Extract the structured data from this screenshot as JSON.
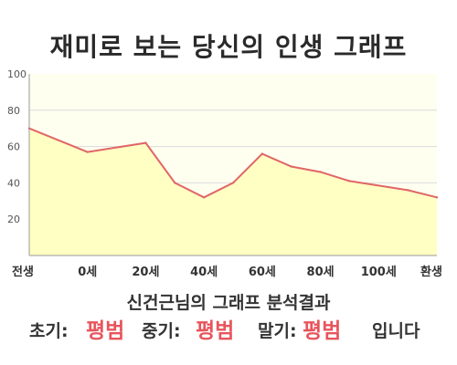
{
  "title": "재미로 보는 당신의 인생 그래프",
  "result": {
    "heading": "신건근님의 그래프 분석결과",
    "early_label": "초기:",
    "early_value": "평범",
    "middle_label": "중기:",
    "middle_value": "평범",
    "late_label": "말기:",
    "late_value": "평범",
    "suffix": "입니다"
  },
  "colors": {
    "line": "#e06666",
    "fill": "#ffffc4",
    "plot_background": "#fffff0",
    "grid": "#dcdcdc",
    "accent_text": "#e8555c"
  },
  "chart_data": {
    "type": "area",
    "title": "재미로 보는 당신의 인생 그래프",
    "xlabel": "",
    "ylabel": "",
    "ylim": [
      0,
      100
    ],
    "yticks": [
      20,
      40,
      60,
      80,
      100
    ],
    "xticks": [
      "전생",
      "0세",
      "20세",
      "40세",
      "60세",
      "80세",
      "100세",
      "환생"
    ],
    "x": [
      0,
      2,
      4,
      5,
      6,
      7,
      8,
      9,
      10,
      11,
      13,
      14
    ],
    "series": [
      {
        "name": "",
        "values": [
          70,
          57,
          62,
          40,
          32,
          40,
          56,
          49,
          46,
          41,
          36,
          32
        ]
      }
    ],
    "grid": true
  }
}
